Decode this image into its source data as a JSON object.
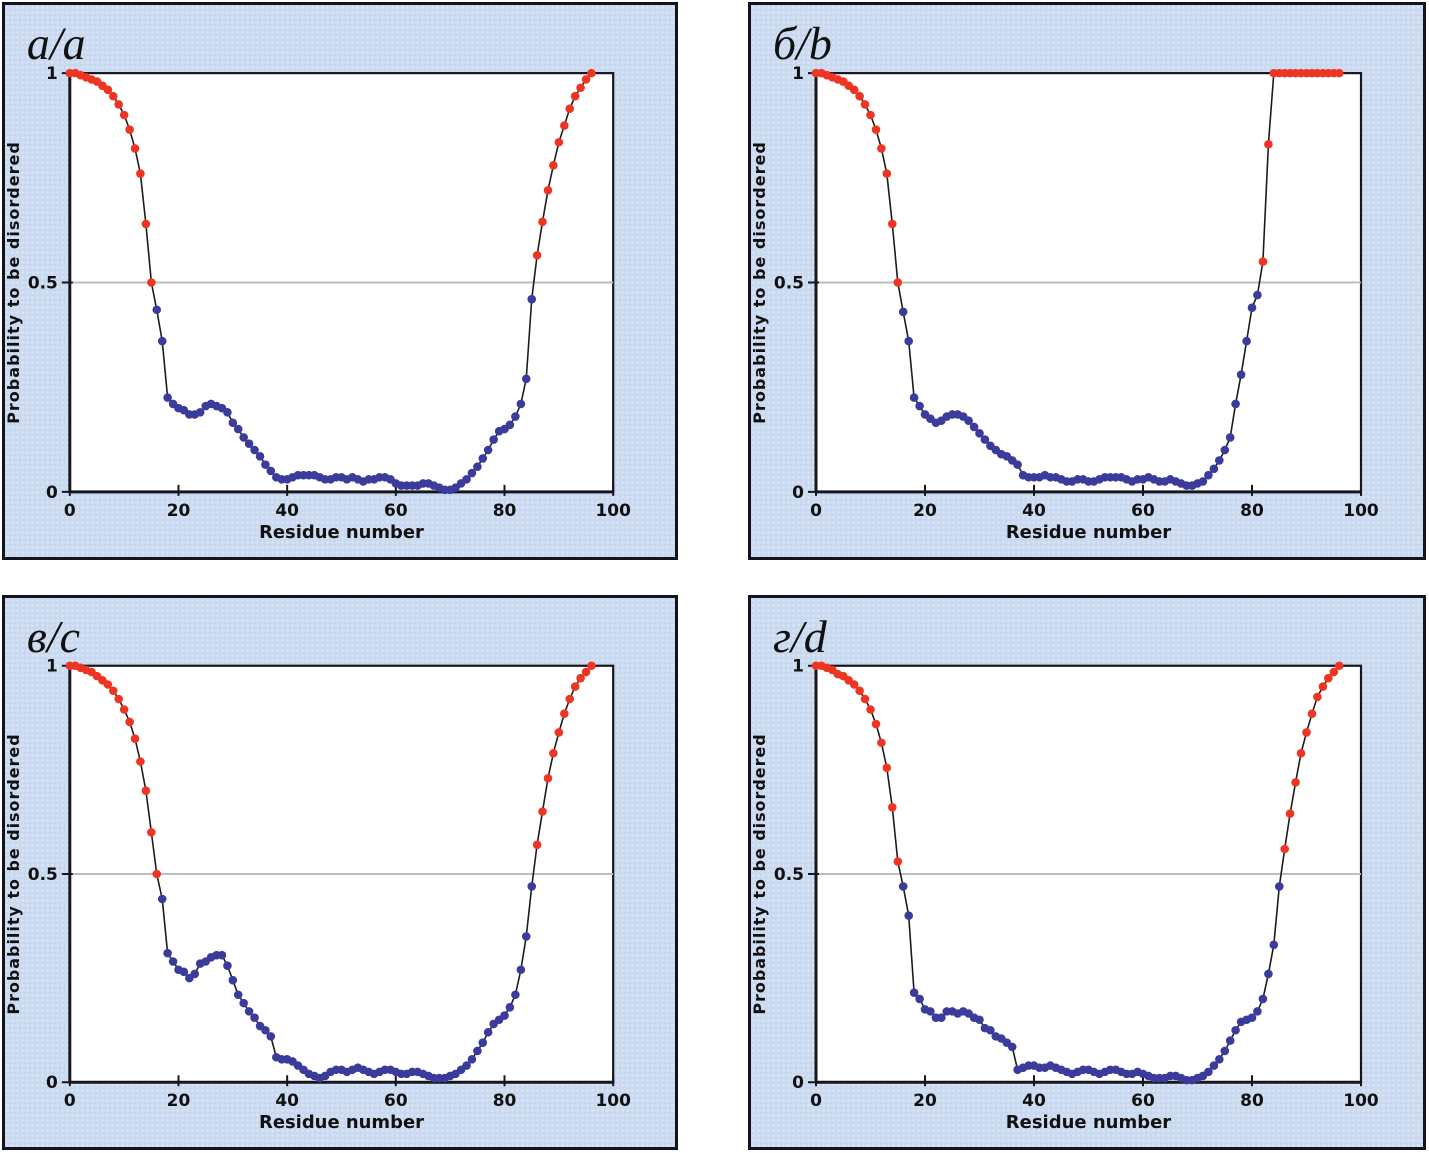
{
  "figure": {
    "description_labels": [
      "a/a",
      "б/b",
      "в/c",
      "г/d"
    ],
    "panel_background": "#c9daf0",
    "panel_border_color": "#14141c",
    "plot_background": "#ffffff"
  },
  "colors": {
    "marker_above_threshold": "#ee3524",
    "marker_below_threshold": "#3b3b9b",
    "curve_line": "#1c1c1c",
    "plot_border": "#16161f",
    "gridline": "#bdbdbd",
    "text": "#111111"
  },
  "chart_data": [
    {
      "type": "line",
      "panel_label": "a/a",
      "xlabel": "Residue number",
      "ylabel": "Probability to be disordered",
      "xlim": [
        0,
        100
      ],
      "ylim": [
        0,
        1
      ],
      "xticks": [
        0,
        20,
        40,
        60,
        80,
        100
      ],
      "yticks": [
        0,
        0.5,
        1
      ],
      "ytick_labels": [
        "0",
        "0.5",
        "1"
      ],
      "grid_y": [
        0.5
      ],
      "threshold": 0.5,
      "legend": "points >= 0.5 red (disordered), < 0.5 blue (ordered)",
      "x_start": 0,
      "x_step": 1,
      "values": [
        1.0,
        1.0,
        0.995,
        0.99,
        0.985,
        0.98,
        0.97,
        0.96,
        0.945,
        0.925,
        0.9,
        0.865,
        0.82,
        0.76,
        0.64,
        0.5,
        0.435,
        0.36,
        0.225,
        0.21,
        0.2,
        0.195,
        0.185,
        0.185,
        0.19,
        0.205,
        0.21,
        0.205,
        0.2,
        0.19,
        0.165,
        0.15,
        0.13,
        0.115,
        0.1,
        0.085,
        0.065,
        0.05,
        0.035,
        0.03,
        0.03,
        0.035,
        0.04,
        0.04,
        0.04,
        0.04,
        0.035,
        0.03,
        0.03,
        0.035,
        0.035,
        0.03,
        0.035,
        0.03,
        0.025,
        0.03,
        0.03,
        0.035,
        0.035,
        0.03,
        0.02,
        0.015,
        0.015,
        0.015,
        0.015,
        0.02,
        0.02,
        0.015,
        0.01,
        0.005,
        0.005,
        0.01,
        0.02,
        0.03,
        0.045,
        0.06,
        0.08,
        0.1,
        0.125,
        0.145,
        0.15,
        0.16,
        0.18,
        0.21,
        0.27,
        0.46,
        0.565,
        0.645,
        0.72,
        0.78,
        0.835,
        0.875,
        0.915,
        0.945,
        0.965,
        0.985,
        1.0
      ]
    },
    {
      "type": "line",
      "panel_label": "б/b",
      "xlabel": "Residue number",
      "ylabel": "Probability to be disordered",
      "xlim": [
        0,
        100
      ],
      "ylim": [
        0,
        1
      ],
      "xticks": [
        0,
        20,
        40,
        60,
        80,
        100
      ],
      "yticks": [
        0,
        0.5,
        1
      ],
      "ytick_labels": [
        "0",
        "0.5",
        "1"
      ],
      "grid_y": [
        0.5
      ],
      "threshold": 0.5,
      "legend": "points >= 0.5 red (disordered), < 0.5 blue (ordered)",
      "x_start": 0,
      "x_step": 1,
      "values": [
        1.0,
        1.0,
        0.995,
        0.99,
        0.985,
        0.98,
        0.97,
        0.96,
        0.945,
        0.925,
        0.9,
        0.865,
        0.82,
        0.76,
        0.64,
        0.5,
        0.43,
        0.36,
        0.225,
        0.205,
        0.185,
        0.175,
        0.165,
        0.17,
        0.18,
        0.185,
        0.185,
        0.18,
        0.17,
        0.155,
        0.14,
        0.125,
        0.11,
        0.1,
        0.09,
        0.085,
        0.075,
        0.065,
        0.04,
        0.035,
        0.035,
        0.035,
        0.04,
        0.035,
        0.035,
        0.03,
        0.025,
        0.025,
        0.03,
        0.03,
        0.025,
        0.025,
        0.03,
        0.035,
        0.035,
        0.035,
        0.035,
        0.03,
        0.025,
        0.03,
        0.03,
        0.035,
        0.03,
        0.025,
        0.025,
        0.03,
        0.025,
        0.02,
        0.015,
        0.015,
        0.02,
        0.025,
        0.04,
        0.055,
        0.075,
        0.1,
        0.13,
        0.21,
        0.28,
        0.36,
        0.44,
        0.47,
        0.55,
        0.83,
        1.0,
        1.0,
        1.0,
        1.0,
        1.0,
        1.0,
        1.0,
        1.0,
        1.0,
        1.0,
        1.0,
        1.0,
        1.0
      ]
    },
    {
      "type": "line",
      "panel_label": "в/c",
      "xlabel": "Residue number",
      "ylabel": "Probability to be disordered",
      "xlim": [
        0,
        100
      ],
      "ylim": [
        0,
        1
      ],
      "xticks": [
        0,
        20,
        40,
        60,
        80,
        100
      ],
      "yticks": [
        0,
        0.5,
        1
      ],
      "ytick_labels": [
        "0",
        "0.5",
        "1"
      ],
      "grid_y": [
        0.5
      ],
      "threshold": 0.5,
      "legend": "points >= 0.5 red (disordered), < 0.5 blue (ordered)",
      "x_start": 0,
      "x_step": 1,
      "values": [
        1.0,
        1.0,
        0.995,
        0.99,
        0.985,
        0.975,
        0.965,
        0.955,
        0.94,
        0.92,
        0.895,
        0.865,
        0.825,
        0.77,
        0.7,
        0.6,
        0.5,
        0.44,
        0.31,
        0.29,
        0.27,
        0.265,
        0.25,
        0.26,
        0.285,
        0.29,
        0.3,
        0.305,
        0.305,
        0.28,
        0.245,
        0.21,
        0.19,
        0.17,
        0.155,
        0.135,
        0.125,
        0.11,
        0.06,
        0.055,
        0.055,
        0.05,
        0.04,
        0.03,
        0.02,
        0.015,
        0.01,
        0.015,
        0.025,
        0.03,
        0.03,
        0.025,
        0.03,
        0.035,
        0.03,
        0.025,
        0.02,
        0.025,
        0.03,
        0.03,
        0.025,
        0.02,
        0.02,
        0.025,
        0.025,
        0.02,
        0.015,
        0.01,
        0.01,
        0.01,
        0.015,
        0.02,
        0.03,
        0.04,
        0.055,
        0.075,
        0.095,
        0.12,
        0.14,
        0.15,
        0.16,
        0.18,
        0.21,
        0.27,
        0.35,
        0.47,
        0.57,
        0.65,
        0.73,
        0.79,
        0.84,
        0.885,
        0.92,
        0.95,
        0.97,
        0.985,
        1.0
      ]
    },
    {
      "type": "line",
      "panel_label": "г/d",
      "xlabel": "Residue number",
      "ylabel": "Probability to be disordered",
      "xlim": [
        0,
        100
      ],
      "ylim": [
        0,
        1
      ],
      "xticks": [
        0,
        20,
        40,
        60,
        80,
        100
      ],
      "yticks": [
        0,
        0.5,
        1
      ],
      "ytick_labels": [
        "0",
        "0.5",
        "1"
      ],
      "grid_y": [
        0.5
      ],
      "threshold": 0.5,
      "legend": "points >= 0.5 red (disordered), < 0.5 blue (ordered)",
      "x_start": 0,
      "x_step": 1,
      "values": [
        1.0,
        1.0,
        0.995,
        0.99,
        0.98,
        0.975,
        0.965,
        0.955,
        0.94,
        0.92,
        0.895,
        0.86,
        0.815,
        0.755,
        0.66,
        0.53,
        0.47,
        0.4,
        0.215,
        0.2,
        0.175,
        0.17,
        0.155,
        0.155,
        0.17,
        0.17,
        0.165,
        0.17,
        0.165,
        0.155,
        0.15,
        0.13,
        0.125,
        0.11,
        0.105,
        0.095,
        0.085,
        0.03,
        0.035,
        0.04,
        0.04,
        0.035,
        0.035,
        0.04,
        0.035,
        0.03,
        0.025,
        0.02,
        0.025,
        0.03,
        0.03,
        0.025,
        0.02,
        0.025,
        0.03,
        0.03,
        0.025,
        0.02,
        0.02,
        0.025,
        0.02,
        0.015,
        0.01,
        0.01,
        0.01,
        0.015,
        0.015,
        0.01,
        0.005,
        0.005,
        0.01,
        0.015,
        0.025,
        0.04,
        0.055,
        0.075,
        0.1,
        0.125,
        0.145,
        0.15,
        0.155,
        0.17,
        0.2,
        0.26,
        0.33,
        0.47,
        0.56,
        0.645,
        0.72,
        0.79,
        0.84,
        0.885,
        0.925,
        0.95,
        0.97,
        0.985,
        1.0
      ]
    }
  ]
}
